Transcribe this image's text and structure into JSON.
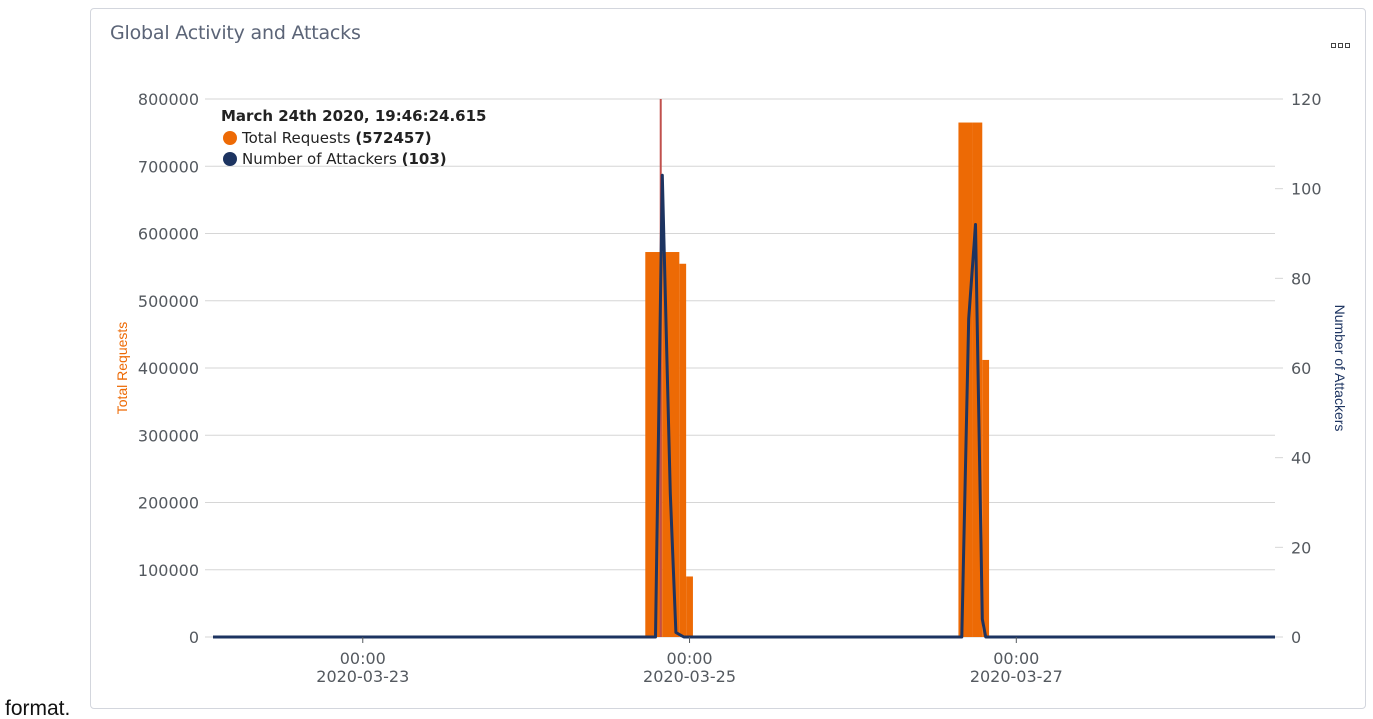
{
  "panel": {
    "title": "Global Activity and Attacks",
    "menu_icon": "more-options-icon"
  },
  "outside_text": "format.",
  "colors": {
    "requests": "#ed6a05",
    "attackers": "#1d3461",
    "cursor": "#c0504d",
    "grid": "#d6d6d6",
    "axis_text": "#54595f"
  },
  "tooltip": {
    "time": "March 24th 2020, 19:46:24.615",
    "rows": [
      {
        "label": "Total Requests",
        "value": "(572457)",
        "color": "#ed6a05"
      },
      {
        "label": "Number of Attackers",
        "value": "(103)",
        "color": "#1d3461"
      }
    ]
  },
  "chart_data": {
    "type": "bar",
    "title": "",
    "xlabel": "",
    "ylabel": "Total Requests",
    "y2label": "Number of Attackers",
    "ylim": [
      0,
      800000
    ],
    "y2lim": [
      0,
      120
    ],
    "yticks": [
      0,
      100000,
      200000,
      300000,
      400000,
      500000,
      600000,
      700000,
      800000
    ],
    "y2ticks": [
      0,
      20,
      40,
      60,
      80,
      100,
      120
    ],
    "xlim": [
      "2020-03-22 02:00",
      "2020-03-28 14:00"
    ],
    "xticks": [
      {
        "t": "2020-03-23 00:00",
        "line1": "00:00",
        "line2": "2020-03-23"
      },
      {
        "t": "2020-03-25 00:00",
        "line1": "00:00",
        "line2": "2020-03-25"
      },
      {
        "t": "2020-03-27 00:00",
        "line1": "00:00",
        "line2": "2020-03-27"
      }
    ],
    "grid": true,
    "cursor_time": "2020-03-24 19:46",
    "series": [
      {
        "name": "Total Requests",
        "type": "bar",
        "axis": "left",
        "color": "#ed6a05",
        "points": [
          {
            "start": "2020-03-24 17:30",
            "end": "2020-03-24 20:00",
            "value": 572457
          },
          {
            "start": "2020-03-24 20:00",
            "end": "2020-03-24 22:30",
            "value": 572457
          },
          {
            "start": "2020-03-24 22:30",
            "end": "2020-03-24 23:30",
            "value": 555000
          },
          {
            "start": "2020-03-24 23:30",
            "end": "2020-03-25 00:30",
            "value": 90000
          },
          {
            "start": "2020-03-26 15:30",
            "end": "2020-03-26 17:30",
            "value": 765000
          },
          {
            "start": "2020-03-26 17:30",
            "end": "2020-03-26 19:00",
            "value": 765000
          },
          {
            "start": "2020-03-26 19:00",
            "end": "2020-03-26 20:00",
            "value": 412000
          }
        ]
      },
      {
        "name": "Number of Attackers",
        "type": "line",
        "axis": "right",
        "color": "#1d3461",
        "points": [
          {
            "t": "2020-03-22 02:00",
            "v": 0
          },
          {
            "t": "2020-03-24 18:00",
            "v": 0
          },
          {
            "t": "2020-03-24 19:00",
            "v": 0
          },
          {
            "t": "2020-03-24 20:00",
            "v": 103
          },
          {
            "t": "2020-03-24 21:10",
            "v": 32
          },
          {
            "t": "2020-03-24 22:00",
            "v": 1
          },
          {
            "t": "2020-03-24 23:10",
            "v": 0
          },
          {
            "t": "2020-03-26 16:00",
            "v": 0
          },
          {
            "t": "2020-03-26 17:00",
            "v": 71
          },
          {
            "t": "2020-03-26 18:00",
            "v": 92
          },
          {
            "t": "2020-03-26 19:00",
            "v": 4
          },
          {
            "t": "2020-03-26 19:30",
            "v": 0
          },
          {
            "t": "2020-03-28 14:00",
            "v": 0
          }
        ]
      }
    ]
  }
}
